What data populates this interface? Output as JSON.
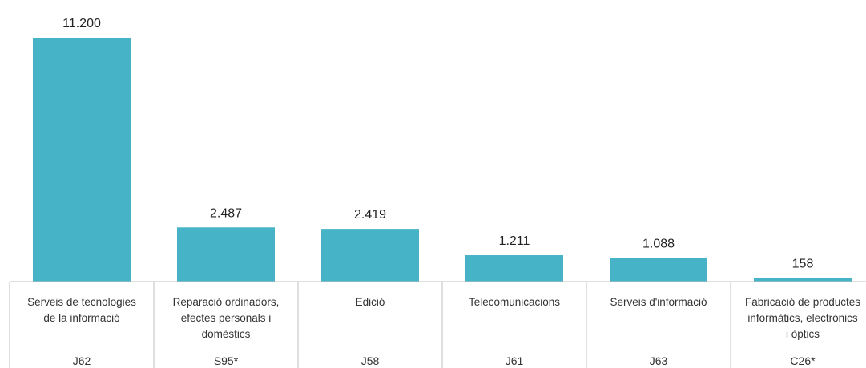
{
  "chart_data": {
    "type": "bar",
    "title": "",
    "xlabel": "",
    "ylabel": "",
    "ylim": [
      0,
      11200
    ],
    "bar_color": "#46B3C7",
    "value_labels": [
      "11.200",
      "2.487",
      "2.419",
      "1.211",
      "1.088",
      "158"
    ],
    "categories": [
      [
        "Serveis de tecnologies",
        "de la informació"
      ],
      [
        "Reparació ordinadors,",
        "efectes personals i",
        "domèstics"
      ],
      [
        "Edició"
      ],
      [
        "Telecomunicacions"
      ],
      [
        "Serveis d'informació"
      ],
      [
        "Fabricació de productes",
        "informàtics, electrònics",
        "i òptics"
      ]
    ],
    "codes": [
      "J62",
      "S95*",
      "J58",
      "J61",
      "J63",
      "C26*"
    ],
    "values": [
      11200,
      2487,
      2419,
      1211,
      1088,
      158
    ]
  }
}
